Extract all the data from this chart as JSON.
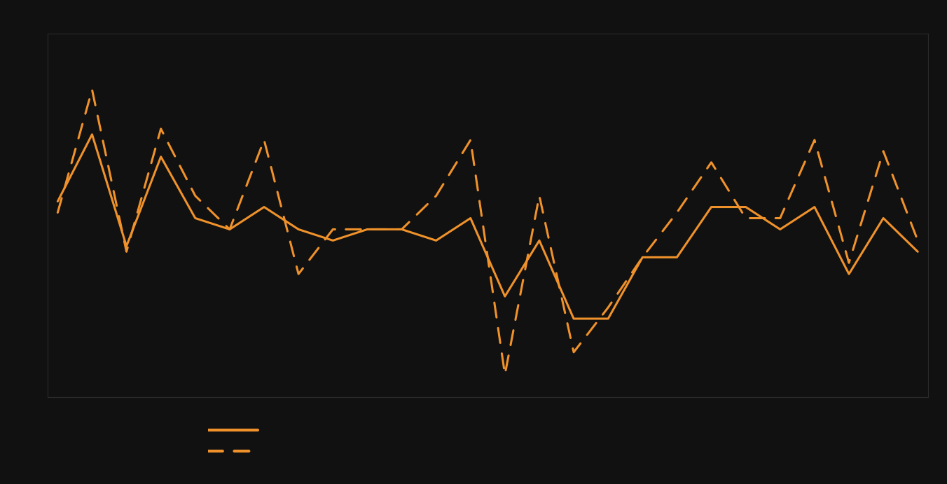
{
  "solid_line": [
    35,
    47,
    27,
    43,
    32,
    30,
    34,
    30,
    28,
    30,
    30,
    28,
    32,
    18,
    28,
    14,
    14,
    25,
    25,
    34,
    34,
    30,
    34,
    22,
    32,
    26
  ],
  "dashed_line": [
    33,
    55,
    26,
    48,
    36,
    30,
    46,
    22,
    30,
    30,
    30,
    36,
    46,
    4,
    36,
    8,
    16,
    25,
    33,
    42,
    32,
    32,
    46,
    24,
    44,
    28
  ],
  "line_color": "#f0922b",
  "bg_color": "#111111",
  "plot_bg_color": "#111111",
  "grid_color": "#2a2a2a",
  "ylim": [
    0,
    65
  ],
  "n_gridlines": 6
}
